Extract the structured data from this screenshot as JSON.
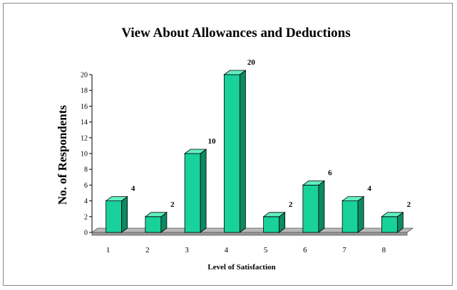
{
  "chart_data": {
    "type": "bar",
    "title": "View About Allowances and Deductions",
    "xlabel": "Level of Satisfaction",
    "ylabel": "No. of Respondents",
    "categories": [
      "1",
      "2",
      "3",
      "4",
      "5",
      "6",
      "7",
      "8"
    ],
    "values": [
      4,
      2,
      10,
      20,
      2,
      6,
      4,
      2
    ],
    "data_labels": [
      "4",
      "2",
      "10",
      "20",
      "2",
      "6",
      "4",
      "2"
    ],
    "ylim": [
      0,
      20
    ],
    "yticks": [
      "0",
      "2",
      "4",
      "6",
      "8",
      "10",
      "12",
      "14",
      "16",
      "18",
      "20"
    ],
    "grid": false,
    "legend": "none",
    "colors": {
      "bar_front": "#19d19b",
      "bar_side": "#0c8a63",
      "bar_top": "#62eec3",
      "floor": "#9a9a9a",
      "floor_top": "#b9b9b9"
    }
  }
}
